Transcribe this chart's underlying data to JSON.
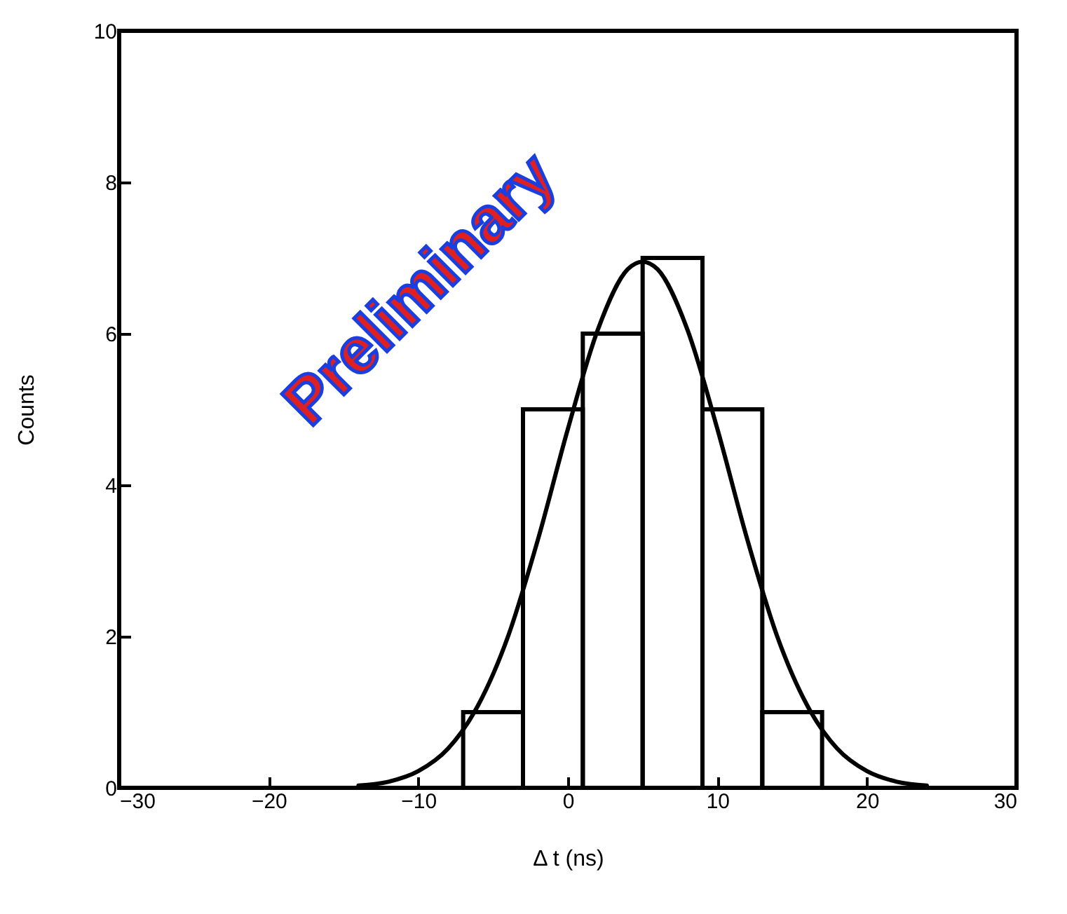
{
  "chart_data": {
    "type": "histogram",
    "xlabel": "Δ t (ns)",
    "ylabel": "Counts",
    "annotations": [
      "Preliminary"
    ],
    "bins": [
      -7,
      -3,
      1,
      5,
      9,
      13,
      17
    ],
    "values": [
      1,
      5,
      6,
      7,
      5,
      1
    ],
    "color": "#000000",
    "series": [
      {
        "type": "line",
        "color": "#000000",
        "x": [
          -14,
          -12,
          -10,
          -8,
          -6,
          -4,
          -2,
          0,
          2,
          4,
          5,
          6,
          8,
          10,
          12,
          14,
          16,
          18,
          20,
          22,
          24
        ],
        "values": [
          0.03,
          0.08,
          0.22,
          0.52,
          1.09,
          2.0,
          3.28,
          4.74,
          6.05,
          6.85,
          6.95,
          6.85,
          6.05,
          4.74,
          3.28,
          2.0,
          1.09,
          0.52,
          0.22,
          0.08,
          0.03
        ]
      }
    ],
    "xlim": [
      -30,
      30
    ],
    "xticks": [
      -30,
      -20,
      -10,
      0,
      10,
      20,
      30
    ],
    "ylim": [
      0,
      10
    ],
    "yticks": [
      0,
      2,
      4,
      6,
      8,
      10
    ],
    "grid": false
  }
}
